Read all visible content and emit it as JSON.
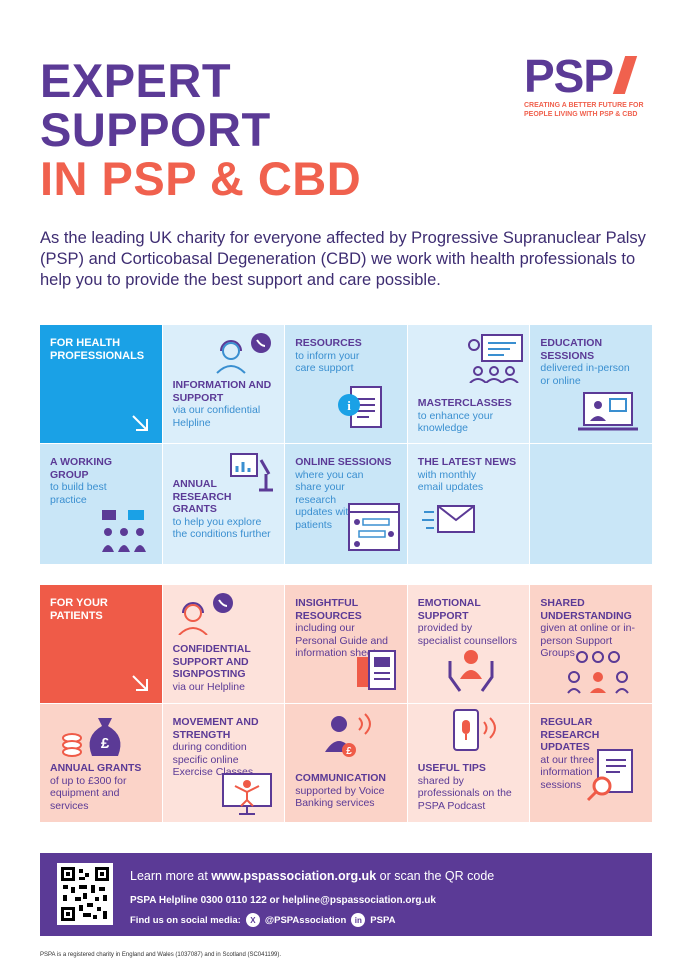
{
  "title": {
    "line1": "EXPERT",
    "line2": "SUPPORT",
    "line3": "IN PSP & CBD"
  },
  "logo": {
    "mark": "PSP",
    "tagline1": "CREATING A BETTER FUTURE FOR",
    "tagline2": "PEOPLE LIVING WITH PSP & CBD"
  },
  "intro": "As the leading UK charity for everyone affected by Progressive Supranuclear Palsy (PSP) and Corticobasal Degeneration (CBD) we work with health professionals to help you to provide the best support and care possible.",
  "health": {
    "hero": "FOR HEALTH PROFESSIONALS",
    "info": {
      "h": "INFORMATION AND SUPPORT",
      "d": "via our confidential Helpline"
    },
    "resources": {
      "h": "RESOURCES",
      "d": "to inform your care support"
    },
    "masterclasses": {
      "h": "MASTERCLASSES",
      "d": "to enhance your knowledge"
    },
    "education": {
      "h": "EDUCATION SESSIONS",
      "d": "delivered in-person or online"
    },
    "working": {
      "h": "A WORKING GROUP",
      "d": "to build best practice"
    },
    "grants": {
      "h": "ANNUAL RESEARCH GRANTS",
      "d": "to help you explore the conditions further"
    },
    "online": {
      "h": "ONLINE SESSIONS",
      "d": "where you can share your research updates with patients"
    },
    "news": {
      "h": "THE LATEST NEWS",
      "d": "with monthly email updates"
    }
  },
  "patients": {
    "hero": "FOR YOUR PATIENTS",
    "confidential": {
      "h": "CONFIDENTIAL SUPPORT AND SIGNPOSTING",
      "d": "via our Helpline"
    },
    "insightful": {
      "h": "INSIGHTFUL RESOURCES",
      "d": "including our Personal Guide and information sheets"
    },
    "emotional": {
      "h": "EMOTIONAL SUPPORT",
      "d": "provided by specialist counsellors"
    },
    "shared": {
      "h": "SHARED UNDERSTANDING",
      "d": "given at online or in-person Support Groups"
    },
    "annual": {
      "h": "ANNUAL GRANTS",
      "d": "of up to £300 for equipment and services"
    },
    "movement": {
      "h": "MOVEMENT AND STRENGTH",
      "d": "during condition specific online Exercise Classes"
    },
    "communication": {
      "h": "COMMUNICATION",
      "d": "supported by Voice Banking services"
    },
    "tips": {
      "h": "USEFUL TIPS",
      "d": "shared by professionals on the PSPA Podcast"
    },
    "regular": {
      "h": "REGULAR RESEARCH UPDATES",
      "d": "at our three information sessions"
    }
  },
  "footer": {
    "learn_prefix": "Learn more at ",
    "url": "www.pspassociation.org.uk",
    "learn_suffix": " or scan the QR code",
    "helpline": "PSPA Helpline 0300 0110 122 or helpline@pspassociation.org.uk",
    "social_label": "Find us on social media:",
    "x_handle": "@PSPAssociation",
    "x_icon": "X",
    "linkedin_handle": "PSPA",
    "linkedin_icon": "in"
  },
  "legal": "PSPA is a registered charity in England and Wales (1037087) and in Scotland (SC041199).",
  "colors": {
    "purple": "#5b3a96",
    "coral": "#f0614e",
    "blue": "#1aa1e6"
  }
}
